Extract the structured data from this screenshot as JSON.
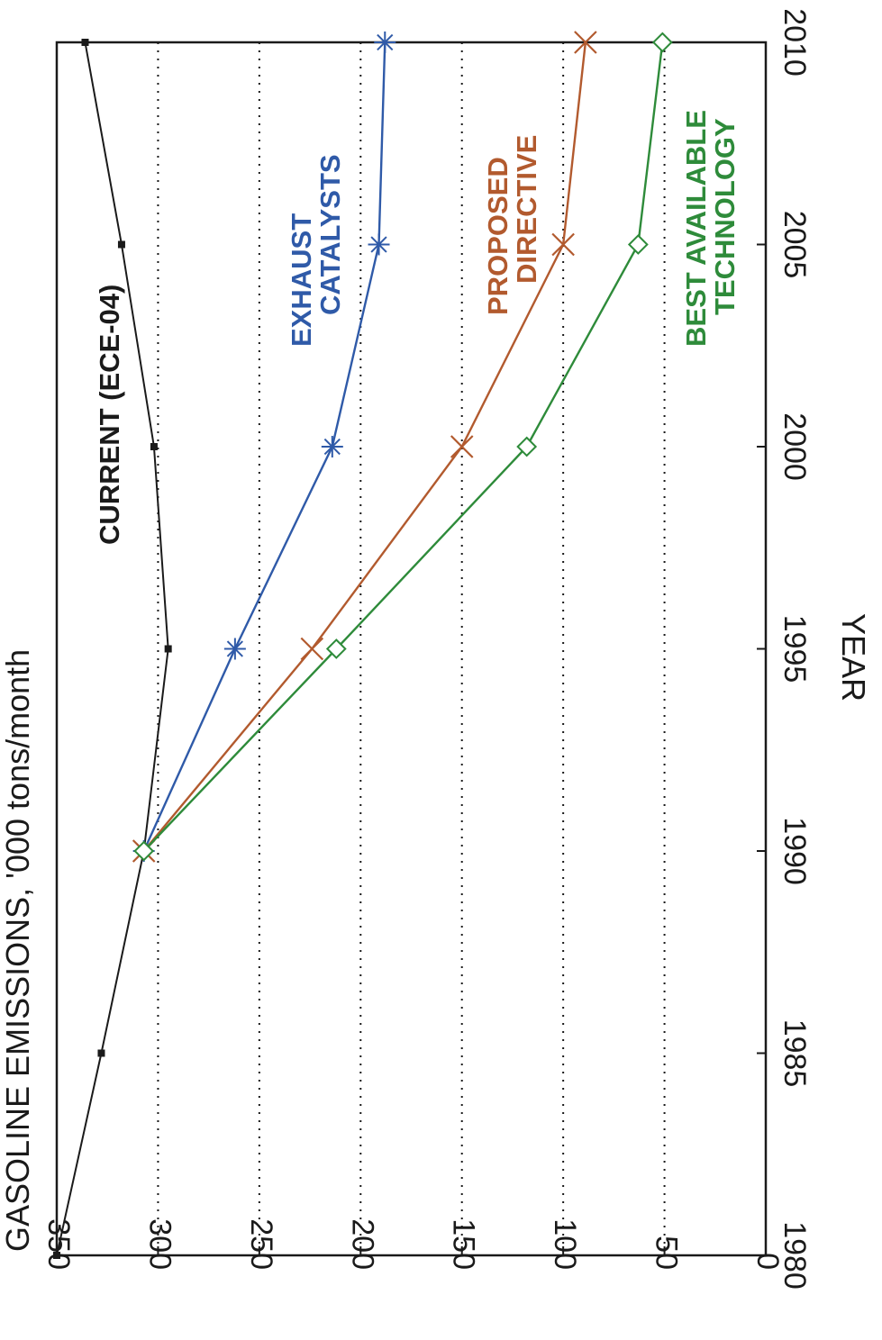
{
  "chart_data": {
    "type": "line",
    "orientation": "rotated-90-clockwise",
    "ylabel": "GASOLINE EMISSIONS, '000 tons/month",
    "xlabel": "YEAR",
    "x_ticks": [
      1980,
      1985,
      1990,
      1995,
      2000,
      2005,
      2010
    ],
    "y_ticks": [
      0,
      50,
      100,
      150,
      200,
      250,
      300,
      350
    ],
    "xlim": [
      1980,
      2010
    ],
    "ylim": [
      0,
      350
    ],
    "grid": "dotted horizontal at 50-unit intervals",
    "series": [
      {
        "name": "CURRENT (ECE-04)",
        "label_lines": [
          "CURRENT (ECE-04)"
        ],
        "color": "#1a1a1a",
        "marker": "square",
        "x": [
          1980,
          1985,
          1990,
          1995,
          2000,
          2005,
          2010
        ],
        "y": [
          350,
          328,
          307,
          295,
          302,
          318,
          336
        ]
      },
      {
        "name": "EXHAUST CATALYSTS",
        "label_lines": [
          "EXHAUST",
          "CATALYSTS"
        ],
        "color": "#2f5aa8",
        "marker": "asterisk",
        "x": [
          1990,
          1995,
          2000,
          2005,
          2010
        ],
        "y": [
          307,
          262,
          214,
          191,
          188
        ]
      },
      {
        "name": "PROPOSED DIRECTIVE",
        "label_lines": [
          "PROPOSED",
          "DIRECTIVE"
        ],
        "color": "#b25a2e",
        "marker": "x",
        "x": [
          1990,
          1995,
          2000,
          2005,
          2010
        ],
        "y": [
          307,
          224,
          150,
          100,
          89
        ]
      },
      {
        "name": "BEST AVAILABLE TECHNOLOGY",
        "label_lines": [
          "BEST AVAILABLE",
          "TECHNOLOGY"
        ],
        "color": "#2e8b3a",
        "marker": "diamond",
        "x": [
          1990,
          1995,
          2000,
          2005,
          2010
        ],
        "y": [
          307,
          212,
          118,
          63,
          51
        ]
      }
    ]
  }
}
